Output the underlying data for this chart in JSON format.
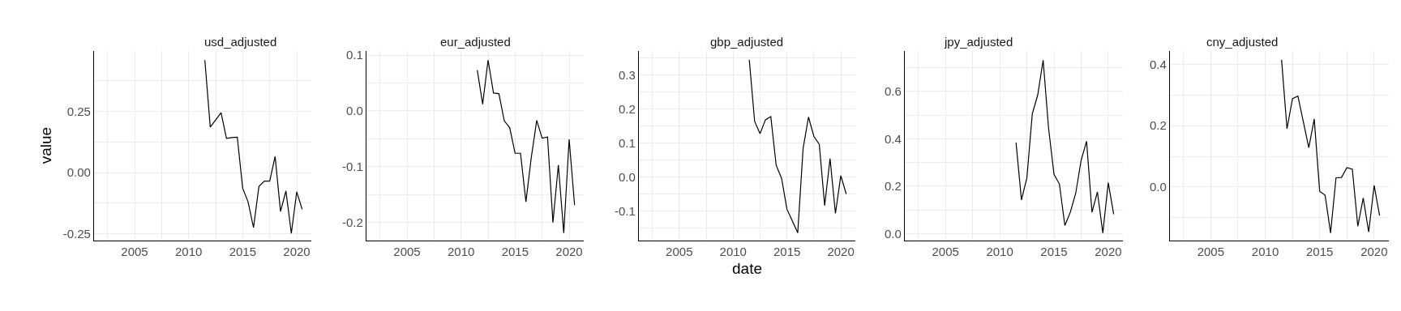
{
  "chart_data": [
    {
      "type": "line",
      "title": "usd_adjusted",
      "ylabel": "value",
      "color": "#000000",
      "grid": true,
      "x": [
        2011.5,
        2012,
        2012.5,
        2013,
        2013.5,
        2014,
        2014.5,
        2015,
        2015.5,
        2016,
        2016.5,
        2017,
        2017.5,
        2018,
        2018.5,
        2019,
        2019.5,
        2020,
        2020.5
      ],
      "values": [
        0.46,
        0.186,
        0.215,
        0.245,
        0.14,
        0.143,
        0.145,
        -0.064,
        -0.12,
        -0.225,
        -0.057,
        -0.035,
        -0.035,
        0.066,
        -0.159,
        -0.075,
        -0.249,
        -0.079,
        -0.15
      ],
      "xlim": [
        2001.25,
        2021.35
      ],
      "xticks": [
        {
          "value": 2002.5,
          "label": null
        },
        2005,
        {
          "value": 2007.5,
          "label": null
        },
        2010,
        {
          "value": 2012.5,
          "label": null
        },
        2015,
        {
          "value": 2017.5,
          "label": null
        },
        2020
      ],
      "ylim": [
        -0.277,
        0.499
      ],
      "yticks": [
        {
          "value": -0.25,
          "label": "-0.25"
        },
        {
          "value": -0.125,
          "label": null
        },
        {
          "value": 0,
          "label": "0.00"
        },
        {
          "value": 0.125,
          "label": null
        },
        0.25,
        {
          "value": 0.375,
          "label": null
        }
      ]
    },
    {
      "type": "line",
      "title": "eur_adjusted",
      "color": "#000000",
      "grid": true,
      "x": [
        2011.5,
        2012,
        2012.5,
        2013,
        2013.5,
        2014,
        2014.5,
        2015,
        2015.5,
        2016,
        2016.5,
        2017,
        2017.5,
        2018,
        2018.5,
        2019,
        2019.5,
        2020,
        2020.5
      ],
      "values": [
        0.073,
        0.012,
        0.091,
        0.032,
        0.031,
        -0.018,
        -0.03,
        -0.076,
        -0.076,
        -0.163,
        -0.083,
        -0.017,
        -0.049,
        -0.047,
        -0.2,
        -0.097,
        -0.219,
        -0.051,
        -0.169
      ],
      "xlim": [
        2001.25,
        2021.35
      ],
      "xticks": [
        {
          "value": 2002.5,
          "label": null
        },
        2005,
        {
          "value": 2007.5,
          "label": null
        },
        2010,
        {
          "value": 2012.5,
          "label": null
        },
        2015,
        {
          "value": 2017.5,
          "label": null
        },
        2020
      ],
      "ylim": [
        -0.232,
        0.108
      ],
      "yticks": [
        {
          "value": -0.2,
          "label": "-0.2"
        },
        {
          "value": -0.15,
          "label": null
        },
        {
          "value": -0.1,
          "label": "-0.1"
        },
        {
          "value": -0.05,
          "label": null
        },
        {
          "value": 0,
          "label": "0.0"
        },
        {
          "value": 0.05,
          "label": null
        },
        0.1
      ]
    },
    {
      "type": "line",
      "title": "gbp_adjusted",
      "xlabel": "date",
      "color": "#000000",
      "grid": true,
      "x": [
        2011.5,
        2012,
        2012.5,
        2013,
        2013.5,
        2014,
        2014.5,
        2015,
        2015.5,
        2016,
        2016.5,
        2017,
        2017.5,
        2018,
        2018.5,
        2019,
        2019.5,
        2020,
        2020.5
      ],
      "values": [
        0.345,
        0.164,
        0.128,
        0.169,
        0.178,
        0.035,
        -0.003,
        -0.094,
        -0.128,
        -0.163,
        0.085,
        0.177,
        0.12,
        0.097,
        -0.083,
        0.055,
        -0.106,
        0.005,
        -0.049
      ],
      "xlim": [
        2001.25,
        2021.35
      ],
      "xticks": [
        {
          "value": 2002.5,
          "label": null
        },
        2005,
        {
          "value": 2007.5,
          "label": null
        },
        2010,
        {
          "value": 2012.5,
          "label": null
        },
        2015,
        {
          "value": 2017.5,
          "label": null
        },
        2020
      ],
      "ylim": [
        -0.185,
        0.372
      ],
      "yticks": [
        {
          "value": -0.15,
          "label": null
        },
        {
          "value": -0.1,
          "label": "-0.1"
        },
        {
          "value": -0.05,
          "label": null
        },
        {
          "value": 0,
          "label": "0.0"
        },
        {
          "value": 0.05,
          "label": null
        },
        0.1,
        {
          "value": 0.15,
          "label": null
        },
        0.2,
        {
          "value": 0.25,
          "label": null
        },
        0.3,
        {
          "value": 0.35,
          "label": null
        }
      ]
    },
    {
      "type": "line",
      "title": "jpy_adjusted",
      "color": "#000000",
      "grid": true,
      "x": [
        2011.5,
        2012,
        2012.5,
        2013,
        2013.5,
        2014,
        2014.5,
        2015,
        2015.5,
        2016,
        2016.5,
        2017,
        2017.5,
        2018,
        2018.5,
        2019,
        2019.5,
        2020,
        2020.5
      ],
      "values": [
        0.384,
        0.142,
        0.235,
        0.506,
        0.585,
        0.732,
        0.444,
        0.25,
        0.209,
        0.034,
        0.09,
        0.17,
        0.31,
        0.39,
        0.09,
        0.176,
        0.003,
        0.215,
        0.082
      ],
      "xlim": [
        2001.25,
        2021.35
      ],
      "xticks": [
        {
          "value": 2002.5,
          "label": null
        },
        2005,
        {
          "value": 2007.5,
          "label": null
        },
        2010,
        {
          "value": 2012.5,
          "label": null
        },
        2015,
        {
          "value": 2017.5,
          "label": null
        },
        2020
      ],
      "ylim": [
        -0.028,
        0.772
      ],
      "yticks": [
        {
          "value": 0,
          "label": "0.0"
        },
        {
          "value": 0.1,
          "label": null
        },
        0.2,
        {
          "value": 0.3,
          "label": null
        },
        0.4,
        {
          "value": 0.5,
          "label": null
        },
        0.6,
        {
          "value": 0.7,
          "label": null
        }
      ]
    },
    {
      "type": "line",
      "title": "cny_adjusted",
      "color": "#000000",
      "grid": true,
      "x": [
        2011.5,
        2012,
        2012.5,
        2013,
        2013.5,
        2014,
        2014.5,
        2015,
        2015.5,
        2016,
        2016.5,
        2017,
        2017.5,
        2018,
        2018.5,
        2019,
        2019.5,
        2020,
        2020.5
      ],
      "values": [
        0.415,
        0.19,
        0.288,
        0.297,
        0.213,
        0.128,
        0.222,
        -0.014,
        -0.027,
        -0.15,
        0.03,
        0.031,
        0.063,
        0.058,
        -0.128,
        -0.036,
        -0.147,
        0.005,
        -0.093
      ],
      "xlim": [
        2001.25,
        2021.35
      ],
      "xticks": [
        {
          "value": 2002.5,
          "label": null
        },
        2005,
        {
          "value": 2007.5,
          "label": null
        },
        2010,
        {
          "value": 2012.5,
          "label": null
        },
        2015,
        {
          "value": 2017.5,
          "label": null
        },
        2020
      ],
      "ylim": [
        -0.174,
        0.445
      ],
      "yticks": [
        {
          "value": -0.1,
          "label": null
        },
        {
          "value": 0,
          "label": "0.0"
        },
        {
          "value": 0.1,
          "label": null
        },
        0.2,
        {
          "value": 0.3,
          "label": null
        },
        0.4
      ]
    }
  ]
}
